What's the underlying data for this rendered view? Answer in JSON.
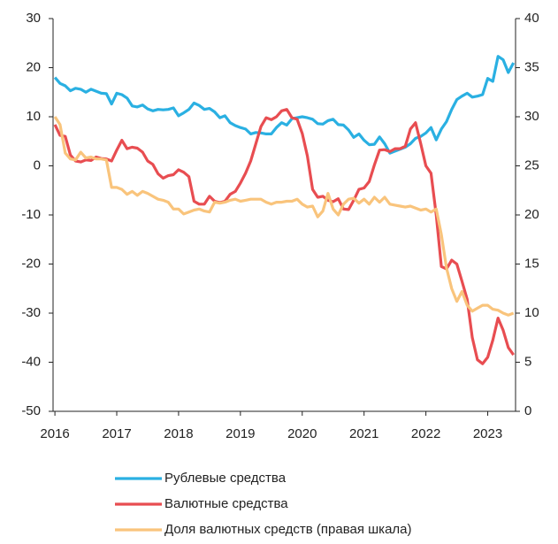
{
  "chart_data": {
    "type": "line",
    "x": [
      2016,
      2016.083,
      2016.167,
      2016.25,
      2016.333,
      2016.417,
      2016.5,
      2016.583,
      2016.667,
      2016.75,
      2016.833,
      2016.917,
      2017,
      2017.083,
      2017.167,
      2017.25,
      2017.333,
      2017.417,
      2017.5,
      2017.583,
      2017.667,
      2017.75,
      2017.833,
      2017.917,
      2018,
      2018.083,
      2018.167,
      2018.25,
      2018.333,
      2018.417,
      2018.5,
      2018.583,
      2018.667,
      2018.75,
      2018.833,
      2018.917,
      2019,
      2019.083,
      2019.167,
      2019.25,
      2019.333,
      2019.417,
      2019.5,
      2019.583,
      2019.667,
      2019.75,
      2019.833,
      2019.917,
      2020,
      2020.083,
      2020.167,
      2020.25,
      2020.333,
      2020.417,
      2020.5,
      2020.583,
      2020.667,
      2020.75,
      2020.833,
      2020.917,
      2021,
      2021.083,
      2021.167,
      2021.25,
      2021.333,
      2021.417,
      2021.5,
      2021.583,
      2021.667,
      2021.75,
      2021.833,
      2021.917,
      2022,
      2022.083,
      2022.167,
      2022.25,
      2022.333,
      2022.417,
      2022.5,
      2022.583,
      2022.667,
      2022.75,
      2022.833,
      2022.917,
      2023,
      2023.083,
      2023.167,
      2023.25,
      2023.333,
      2023.417
    ],
    "series": [
      {
        "name": "Рублевые средства",
        "color": "#2ab0e2",
        "values": [
          18,
          16.8,
          16.3,
          15.3,
          15.8,
          15.6,
          15,
          15.6,
          15.2,
          14.8,
          14.7,
          12.6,
          14.8,
          14.5,
          13.8,
          12.2,
          12,
          12.4,
          11.6,
          11.2,
          11.5,
          11.4,
          11.5,
          11.8,
          10.2,
          10.8,
          11.5,
          12.8,
          12.3,
          11.5,
          11.7,
          11,
          9.8,
          10.2,
          8.8,
          8.2,
          7.8,
          7.5,
          6.5,
          6.8,
          6.7,
          6.5,
          6.5,
          7.8,
          8.8,
          8.3,
          9.6,
          9.8,
          10,
          9.8,
          9.5,
          8.6,
          8.5,
          9.2,
          9.5,
          8.4,
          8.3,
          7.3,
          5.8,
          6.5,
          5.2,
          4.3,
          4.4,
          5.9,
          4.5,
          2.6,
          3,
          3.4,
          3.8,
          4.5,
          5.6,
          6,
          6.7,
          7.8,
          5.3,
          7.5,
          9,
          11.5,
          13.5,
          14.2,
          14.8,
          14,
          14.2,
          14.5,
          17.8,
          17.2,
          22.3,
          21.6,
          19,
          21
        ]
      },
      {
        "name": "Валютные средства",
        "color": "#e84d51",
        "values": [
          8.4,
          6.2,
          6,
          2.2,
          1,
          0.8,
          1.2,
          1.1,
          1.8,
          1.5,
          1.4,
          1,
          3.2,
          5.2,
          3.5,
          3.8,
          3.6,
          2.8,
          1,
          0.3,
          -1.6,
          -2.5,
          -2,
          -1.8,
          -0.8,
          -1.3,
          -2.2,
          -7.2,
          -7.8,
          -7.8,
          -6.2,
          -7.2,
          -7.5,
          -7.2,
          -5.8,
          -5.2,
          -3.5,
          -1.5,
          1,
          4.5,
          8,
          9.8,
          9.4,
          10,
          11.2,
          11.5,
          9.8,
          9.5,
          6.6,
          2,
          -4.8,
          -6.4,
          -6.2,
          -7,
          -7.3,
          -6.7,
          -8.8,
          -8.9,
          -7,
          -4.8,
          -4.5,
          -3.2,
          0.2,
          3.2,
          3.3,
          2.9,
          3.5,
          3.5,
          4,
          7.5,
          8.8,
          4.5,
          0,
          -1.5,
          -10,
          -20.5,
          -21,
          -19.2,
          -20,
          -23.5,
          -27.2,
          -35,
          -39.5,
          -40.3,
          -39,
          -35.5,
          -31,
          -33.5,
          -37,
          -38.5
        ]
      },
      {
        "name": "Доля валютных средств (правая шкала)",
        "color": "#f9c47c",
        "axis": "y2",
        "values": [
          30,
          29.2,
          26.3,
          25.7,
          25.6,
          26.4,
          25.8,
          25.9,
          25.7,
          25.7,
          25.6,
          22.8,
          22.8,
          22.6,
          22.1,
          22.4,
          22,
          22.4,
          22.2,
          21.9,
          21.6,
          21.5,
          21.3,
          20.6,
          20.6,
          20.1,
          20.3,
          20.5,
          20.6,
          20.4,
          20.3,
          21.3,
          21.2,
          21.3,
          21.5,
          21.6,
          21.4,
          21.5,
          21.6,
          21.6,
          21.6,
          21.3,
          21.1,
          21.3,
          21.3,
          21.4,
          21.4,
          21.6,
          21.1,
          20.8,
          20.9,
          19.8,
          20.4,
          22.2,
          20.6,
          20,
          21.1,
          21.6,
          21.7,
          21.2,
          21.6,
          21.1,
          21.8,
          21.3,
          21.8,
          21.1,
          21,
          20.9,
          20.8,
          20.9,
          20.7,
          20.5,
          20.6,
          20.3,
          20.6,
          18,
          14.6,
          12.5,
          11.2,
          12.2,
          10.8,
          10.2,
          10.5,
          10.8,
          10.8,
          10.4,
          10.3,
          10,
          9.8,
          10
        ]
      }
    ],
    "xlim": [
      2015.97,
      2023.45
    ],
    "xticks": [
      2016,
      2017,
      2018,
      2019,
      2020,
      2021,
      2022,
      2023
    ],
    "ylim": [
      -50,
      30
    ],
    "yticks": [
      -50,
      -40,
      -30,
      -20,
      -10,
      0,
      10,
      20,
      30
    ],
    "y2lim": [
      0,
      40
    ],
    "y2ticks": [
      0,
      5,
      10,
      15,
      20,
      25,
      30,
      35,
      40
    ],
    "legend": "bottom"
  }
}
